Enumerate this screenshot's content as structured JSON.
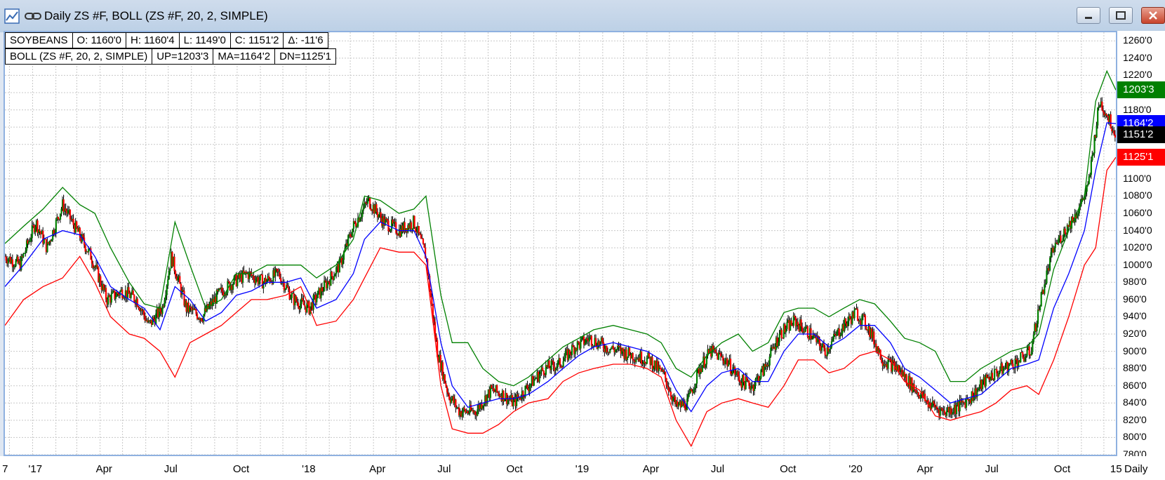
{
  "window": {
    "title": "Daily ZS #F, BOLL (ZS #F, 20, 2, SIMPLE)"
  },
  "legend": {
    "row1": [
      "SOYBEANS",
      "O: 1160'0",
      "H: 1160'4",
      "L: 1149'0",
      "C: 1151'2",
      "Δ: -11'6"
    ],
    "row2": [
      "BOLL (ZS #F, 20, 2, SIMPLE)",
      "UP=1203'3",
      "MA=1164'2",
      "DN=1125'1"
    ]
  },
  "colors": {
    "upper_band": "#008000",
    "middle_band": "#0000ff",
    "lower_band": "#ff0000",
    "up_candle": "#008000",
    "down_candle": "#ff0000",
    "price_badge": "#000000"
  },
  "chart_data": {
    "type": "line",
    "instrument": "SOYBEANS",
    "ylim": [
      780,
      1270
    ],
    "yticks": [
      780,
      800,
      820,
      840,
      860,
      880,
      900,
      920,
      940,
      960,
      980,
      1000,
      1020,
      1040,
      1060,
      1080,
      1100,
      1180,
      1220,
      1240,
      1260
    ],
    "ytick_labels": [
      "780'0",
      "800'0",
      "820'0",
      "840'0",
      "860'0",
      "880'0",
      "900'0",
      "920'0",
      "940'0",
      "960'0",
      "980'0",
      "1000'0",
      "1020'0",
      "1040'0",
      "1060'0",
      "1080'0",
      "1100'0",
      "1180'0",
      "1220'0",
      "1240'0",
      "1260'0"
    ],
    "xlim": [
      "2016-11-25",
      "2020-12-17"
    ],
    "xticks": [
      {
        "label": "7",
        "date": "2016-11-27"
      },
      {
        "label": "'17",
        "date": "2017-01-01"
      },
      {
        "label": "Apr",
        "date": "2017-04-01"
      },
      {
        "label": "Jul",
        "date": "2017-07-01"
      },
      {
        "label": "Oct",
        "date": "2017-10-01"
      },
      {
        "label": "'18",
        "date": "2018-01-01"
      },
      {
        "label": "Apr",
        "date": "2018-04-01"
      },
      {
        "label": "Jul",
        "date": "2018-07-01"
      },
      {
        "label": "Oct",
        "date": "2018-10-01"
      },
      {
        "label": "'19",
        "date": "2019-01-01"
      },
      {
        "label": "Apr",
        "date": "2019-04-01"
      },
      {
        "label": "Jul",
        "date": "2019-07-01"
      },
      {
        "label": "Oct",
        "date": "2019-10-01"
      },
      {
        "label": "'20",
        "date": "2020-01-01"
      },
      {
        "label": "Apr",
        "date": "2020-04-01"
      },
      {
        "label": "Jul",
        "date": "2020-07-01"
      },
      {
        "label": "Oct",
        "date": "2020-10-01"
      },
      {
        "label": "15",
        "date": "2020-12-15"
      }
    ],
    "timeframe_label": "Daily",
    "grid": true,
    "badges": [
      {
        "label": "1203'3",
        "value": 1203.375,
        "color": "#008000"
      },
      {
        "label": "1164'2",
        "value": 1164.25,
        "color": "#0000ff"
      },
      {
        "label": "1151'2",
        "value": 1151.25,
        "color": "#000000"
      },
      {
        "label": "1125'1",
        "value": 1125.125,
        "color": "#ff0000"
      }
    ],
    "series": [
      {
        "name": "Price",
        "dates": [
          "2016-11-25",
          "2016-12-15",
          "2017-01-05",
          "2017-01-20",
          "2017-02-10",
          "2017-03-01",
          "2017-03-20",
          "2017-04-10",
          "2017-05-01",
          "2017-05-20",
          "2017-06-05",
          "2017-06-23",
          "2017-07-05",
          "2017-07-25",
          "2017-08-15",
          "2017-09-05",
          "2017-09-25",
          "2017-10-15",
          "2017-11-05",
          "2017-11-25",
          "2017-12-15",
          "2018-01-05",
          "2018-01-25",
          "2018-02-15",
          "2018-03-05",
          "2018-03-25",
          "2018-04-15",
          "2018-05-05",
          "2018-05-25",
          "2018-06-10",
          "2018-06-25",
          "2018-07-10",
          "2018-07-25",
          "2018-08-15",
          "2018-09-05",
          "2018-09-20",
          "2018-10-05",
          "2018-10-25",
          "2018-11-15",
          "2018-12-05",
          "2018-12-25",
          "2019-01-15",
          "2019-02-05",
          "2019-02-25",
          "2019-03-15",
          "2019-04-05",
          "2019-04-25",
          "2019-05-10",
          "2019-05-25",
          "2019-06-10",
          "2019-06-25",
          "2019-07-15",
          "2019-08-05",
          "2019-08-20",
          "2019-09-05",
          "2019-09-25",
          "2019-10-15",
          "2019-11-05",
          "2019-11-25",
          "2019-12-15",
          "2020-01-05",
          "2020-01-20",
          "2020-02-10",
          "2020-03-01",
          "2020-03-20",
          "2020-04-10",
          "2020-05-01",
          "2020-05-20",
          "2020-06-10",
          "2020-06-30",
          "2020-07-20",
          "2020-08-10",
          "2020-08-25",
          "2020-09-10",
          "2020-09-25",
          "2020-10-10",
          "2020-10-25",
          "2020-11-10",
          "2020-11-25",
          "2020-12-05",
          "2020-12-17"
        ],
        "values": [
          1010,
          1000,
          1050,
          1020,
          1070,
          1040,
          1010,
          960,
          970,
          960,
          930,
          950,
          1010,
          950,
          940,
          965,
          980,
          990,
          980,
          990,
          960,
          950,
          975,
          1000,
          1045,
          1075,
          1050,
          1040,
          1050,
          1010,
          900,
          850,
          830,
          830,
          855,
          850,
          840,
          860,
          880,
          885,
          905,
          915,
          905,
          900,
          895,
          890,
          870,
          835,
          840,
          880,
          900,
          890,
          865,
          860,
          880,
          920,
          935,
          920,
          900,
          925,
          945,
          930,
          890,
          880,
          860,
          840,
          830,
          835,
          850,
          870,
          880,
          890,
          900,
          970,
          1020,
          1040,
          1060,
          1090,
          1190,
          1175,
          1151
        ]
      },
      {
        "name": "UP",
        "dates": [
          "2016-11-25",
          "2016-12-20",
          "2017-01-15",
          "2017-02-10",
          "2017-03-05",
          "2017-03-25",
          "2017-04-15",
          "2017-05-10",
          "2017-05-30",
          "2017-06-20",
          "2017-07-10",
          "2017-07-30",
          "2017-08-20",
          "2017-09-10",
          "2017-09-30",
          "2017-10-20",
          "2017-11-10",
          "2017-12-05",
          "2017-12-25",
          "2018-01-15",
          "2018-02-10",
          "2018-03-05",
          "2018-03-20",
          "2018-04-10",
          "2018-05-05",
          "2018-05-25",
          "2018-06-10",
          "2018-06-30",
          "2018-07-15",
          "2018-08-05",
          "2018-08-25",
          "2018-09-15",
          "2018-10-05",
          "2018-10-25",
          "2018-11-20",
          "2018-12-10",
          "2018-12-31",
          "2019-01-20",
          "2019-02-15",
          "2019-03-10",
          "2019-04-01",
          "2019-04-20",
          "2019-05-10",
          "2019-05-30",
          "2019-06-20",
          "2019-07-10",
          "2019-08-01",
          "2019-08-20",
          "2019-09-10",
          "2019-10-01",
          "2019-10-20",
          "2019-11-10",
          "2019-11-30",
          "2019-12-20",
          "2020-01-10",
          "2020-01-30",
          "2020-02-20",
          "2020-03-10",
          "2020-03-30",
          "2020-04-20",
          "2020-05-10",
          "2020-05-30",
          "2020-06-20",
          "2020-07-10",
          "2020-07-30",
          "2020-08-20",
          "2020-09-05",
          "2020-09-25",
          "2020-10-15",
          "2020-11-05",
          "2020-11-20",
          "2020-12-05",
          "2020-12-17"
        ],
        "values": [
          1025,
          1045,
          1065,
          1090,
          1070,
          1060,
          1020,
          980,
          955,
          950,
          1050,
          1000,
          950,
          960,
          990,
          990,
          1000,
          1000,
          1000,
          985,
          1000,
          1030,
          1080,
          1075,
          1060,
          1065,
          1080,
          965,
          910,
          910,
          880,
          865,
          860,
          870,
          890,
          905,
          915,
          925,
          930,
          925,
          920,
          910,
          880,
          870,
          895,
          910,
          920,
          900,
          910,
          945,
          950,
          950,
          940,
          950,
          960,
          955,
          935,
          915,
          910,
          900,
          865,
          865,
          880,
          890,
          900,
          905,
          920,
          995,
          1040,
          1080,
          1190,
          1225,
          1203
        ]
      },
      {
        "name": "MA",
        "dates": [
          "2016-11-25",
          "2016-12-20",
          "2017-01-15",
          "2017-02-10",
          "2017-03-05",
          "2017-03-25",
          "2017-04-15",
          "2017-05-10",
          "2017-05-30",
          "2017-06-20",
          "2017-07-10",
          "2017-07-30",
          "2017-08-20",
          "2017-09-10",
          "2017-09-30",
          "2017-10-20",
          "2017-11-10",
          "2017-12-05",
          "2017-12-25",
          "2018-01-15",
          "2018-02-10",
          "2018-03-05",
          "2018-03-20",
          "2018-04-10",
          "2018-05-05",
          "2018-05-25",
          "2018-06-10",
          "2018-06-30",
          "2018-07-15",
          "2018-08-05",
          "2018-08-25",
          "2018-09-15",
          "2018-10-05",
          "2018-10-25",
          "2018-11-20",
          "2018-12-10",
          "2018-12-31",
          "2019-01-20",
          "2019-02-15",
          "2019-03-10",
          "2019-04-01",
          "2019-04-20",
          "2019-05-10",
          "2019-05-30",
          "2019-06-20",
          "2019-07-10",
          "2019-08-01",
          "2019-08-20",
          "2019-09-10",
          "2019-10-01",
          "2019-10-20",
          "2019-11-10",
          "2019-11-30",
          "2019-12-20",
          "2020-01-10",
          "2020-01-30",
          "2020-02-20",
          "2020-03-10",
          "2020-03-30",
          "2020-04-20",
          "2020-05-10",
          "2020-05-30",
          "2020-06-20",
          "2020-07-10",
          "2020-07-30",
          "2020-08-20",
          "2020-09-05",
          "2020-09-25",
          "2020-10-15",
          "2020-11-05",
          "2020-11-20",
          "2020-12-05",
          "2020-12-17"
        ],
        "values": [
          975,
          1000,
          1030,
          1040,
          1035,
          1010,
          975,
          960,
          950,
          925,
          975,
          960,
          935,
          945,
          965,
          970,
          980,
          980,
          985,
          950,
          960,
          990,
          1030,
          1050,
          1040,
          1040,
          1010,
          910,
          860,
          835,
          840,
          845,
          845,
          850,
          865,
          880,
          895,
          905,
          910,
          905,
          900,
          890,
          855,
          830,
          860,
          875,
          880,
          865,
          865,
          900,
          920,
          920,
          905,
          915,
          930,
          930,
          910,
          880,
          870,
          855,
          840,
          845,
          850,
          865,
          880,
          885,
          890,
          950,
          990,
          1040,
          1110,
          1165,
          1164
        ]
      },
      {
        "name": "DN",
        "dates": [
          "2016-11-25",
          "2016-12-20",
          "2017-01-15",
          "2017-02-10",
          "2017-03-05",
          "2017-03-25",
          "2017-04-15",
          "2017-05-10",
          "2017-05-30",
          "2017-06-20",
          "2017-07-10",
          "2017-07-30",
          "2017-08-20",
          "2017-09-10",
          "2017-09-30",
          "2017-10-20",
          "2017-11-10",
          "2017-12-05",
          "2017-12-25",
          "2018-01-15",
          "2018-02-10",
          "2018-03-05",
          "2018-03-20",
          "2018-04-10",
          "2018-05-05",
          "2018-05-25",
          "2018-06-10",
          "2018-06-30",
          "2018-07-15",
          "2018-08-05",
          "2018-08-25",
          "2018-09-15",
          "2018-10-05",
          "2018-10-25",
          "2018-11-20",
          "2018-12-10",
          "2018-12-31",
          "2019-01-20",
          "2019-02-15",
          "2019-03-10",
          "2019-04-01",
          "2019-04-20",
          "2019-05-10",
          "2019-05-30",
          "2019-06-20",
          "2019-07-10",
          "2019-08-01",
          "2019-08-20",
          "2019-09-10",
          "2019-10-01",
          "2019-10-20",
          "2019-11-10",
          "2019-11-30",
          "2019-12-20",
          "2020-01-10",
          "2020-01-30",
          "2020-02-20",
          "2020-03-10",
          "2020-03-30",
          "2020-04-20",
          "2020-05-10",
          "2020-05-30",
          "2020-06-20",
          "2020-07-10",
          "2020-07-30",
          "2020-08-20",
          "2020-09-05",
          "2020-09-25",
          "2020-10-15",
          "2020-11-05",
          "2020-11-20",
          "2020-12-05",
          "2020-12-17"
        ],
        "values": [
          930,
          960,
          975,
          985,
          1010,
          980,
          940,
          920,
          915,
          900,
          870,
          910,
          920,
          930,
          945,
          960,
          960,
          965,
          975,
          930,
          935,
          960,
          985,
          1020,
          1015,
          1015,
          1000,
          860,
          810,
          805,
          805,
          815,
          830,
          840,
          845,
          865,
          875,
          880,
          885,
          885,
          880,
          870,
          820,
          790,
          830,
          840,
          845,
          840,
          835,
          860,
          890,
          890,
          875,
          880,
          895,
          900,
          890,
          865,
          855,
          825,
          820,
          825,
          830,
          840,
          855,
          860,
          850,
          890,
          940,
          1000,
          1020,
          1110,
          1125
        ]
      }
    ]
  }
}
